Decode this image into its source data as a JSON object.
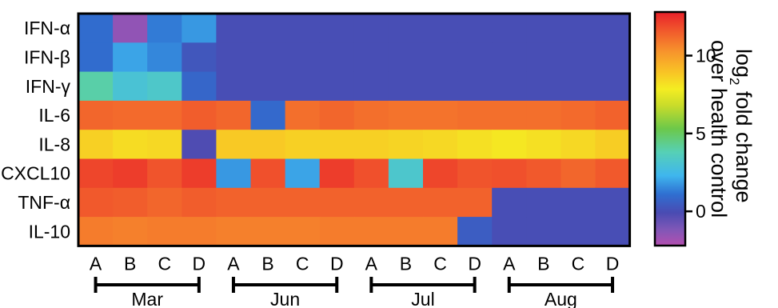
{
  "chart_data": {
    "type": "heatmap",
    "rows": [
      "IFN-α",
      "IFN-β",
      "IFN-γ",
      "IL-6",
      "IL-8",
      "CXCL10",
      "TNF-α",
      "IL-10"
    ],
    "columns": [
      "A",
      "B",
      "C",
      "D",
      "A",
      "B",
      "C",
      "D",
      "A",
      "B",
      "C",
      "D",
      "A",
      "B",
      "C",
      "D"
    ],
    "groups": [
      {
        "label": "Mar",
        "start": 0,
        "end": 3
      },
      {
        "label": "Jun",
        "start": 4,
        "end": 7
      },
      {
        "label": "Jul",
        "start": 8,
        "end": 11
      },
      {
        "label": "Aug",
        "start": 12,
        "end": 15
      }
    ],
    "values": [
      [
        1.0,
        -1.5,
        1.3,
        1.8,
        0,
        0,
        0,
        0,
        0,
        0,
        0,
        0,
        0,
        0,
        0,
        0
      ],
      [
        1.0,
        2.0,
        1.5,
        0.3,
        0,
        0,
        0,
        0,
        0,
        0,
        0,
        0,
        0,
        0,
        0,
        0
      ],
      [
        4.0,
        3.0,
        3.3,
        0.8,
        0,
        0,
        0,
        0,
        0,
        0,
        0,
        0,
        0,
        0,
        0,
        0
      ],
      [
        11.3,
        11.2,
        11.2,
        11.5,
        11.3,
        0.9,
        11.1,
        11.3,
        11.1,
        11.0,
        11.0,
        11.1,
        11.1,
        11.1,
        11.2,
        11.4
      ],
      [
        8.6,
        8.3,
        8.4,
        -0.2,
        8.8,
        8.8,
        8.6,
        8.6,
        8.6,
        8.5,
        8.4,
        8.2,
        8.0,
        8.2,
        8.4,
        8.7
      ],
      [
        12.0,
        12.2,
        11.7,
        12.2,
        1.8,
        11.8,
        2.0,
        12.2,
        11.8,
        3.2,
        12.0,
        11.7,
        11.8,
        11.6,
        11.3,
        11.6
      ],
      [
        11.6,
        11.5,
        11.3,
        11.5,
        11.4,
        11.4,
        11.4,
        11.4,
        11.4,
        11.4,
        11.4,
        11.4,
        0,
        0,
        0,
        0
      ],
      [
        10.8,
        10.7,
        10.8,
        10.8,
        10.7,
        10.7,
        10.7,
        10.8,
        10.8,
        10.8,
        10.8,
        0.5,
        0,
        0,
        0,
        0
      ]
    ],
    "colorbar": {
      "min": -2.2,
      "max": 12.8,
      "ticks": [
        0,
        5,
        10
      ],
      "tick_labels": [
        "0",
        "5",
        "10"
      ],
      "label_line1": "log",
      "label_sub": "2",
      "label_line1_rest": " fold change",
      "label_line2": "over health control",
      "colormap": "rainbow (purple-blue-cyan-green-yellow-orange-red)"
    }
  }
}
